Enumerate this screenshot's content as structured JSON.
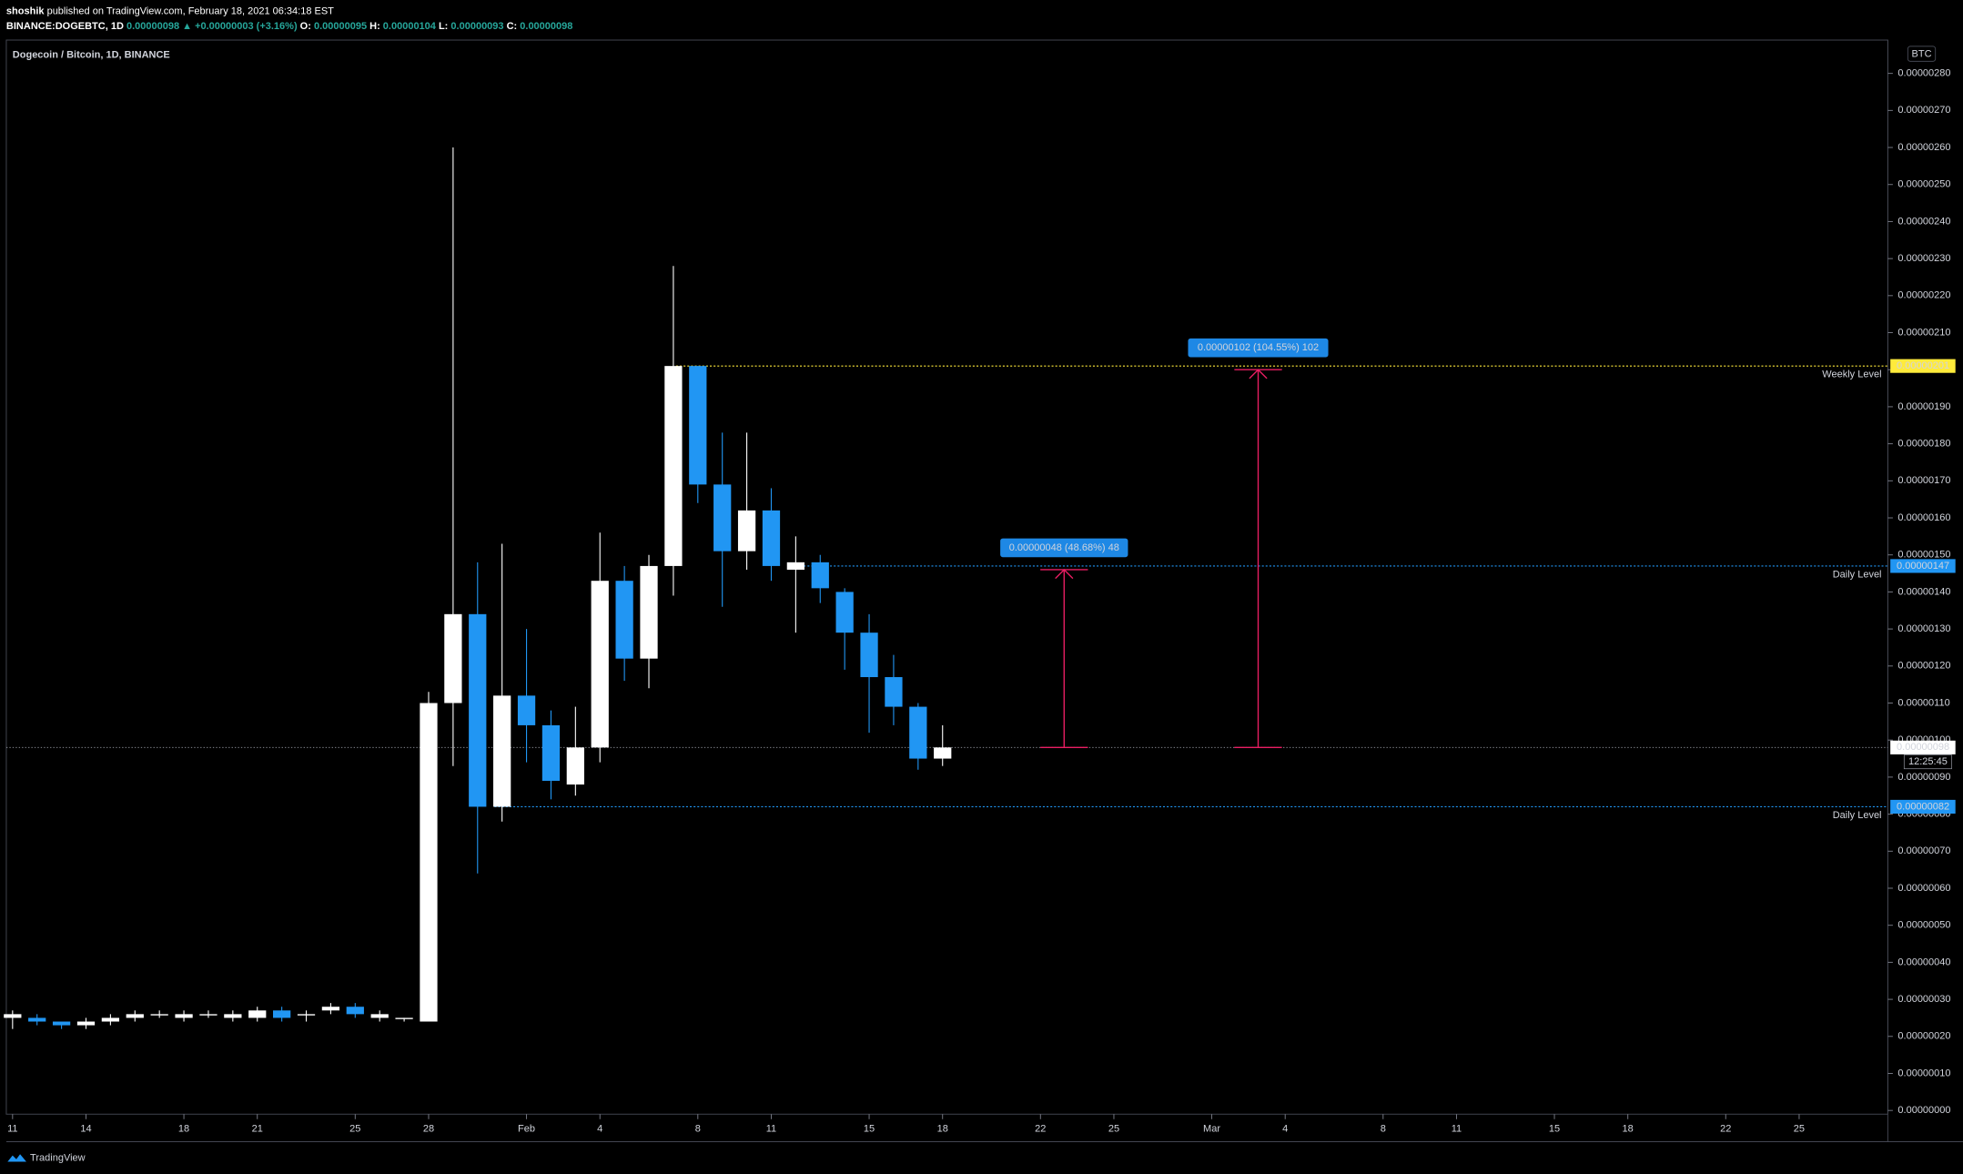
{
  "header": {
    "author": "shoshik",
    "published": " published on TradingView.com, February 18, 2021 06:34:18 EST",
    "line2": [
      "BINANCE:DOGEBTC, 1D",
      "0.00000098",
      "▲",
      "+0.00000003 (+3.16%)",
      "O:",
      "0.00000095",
      "H:",
      "0.00000104",
      "L:",
      "0.00000093",
      "C:",
      "0.00000098"
    ]
  },
  "footer": "TradingView",
  "chart_data": {
    "type": "candlestick",
    "title": "Dogecoin / Bitcoin, 1D, BINANCE",
    "currency": "BTC",
    "up_color": "#ffffff",
    "down_color": "#2196f3",
    "categories": [
      "11",
      null,
      null,
      "14",
      null,
      null,
      null,
      "18",
      null,
      null,
      "21",
      null,
      null,
      null,
      "25",
      null,
      null,
      "28",
      null,
      null,
      null,
      "Feb",
      null,
      null,
      "4",
      null,
      null,
      null,
      "8",
      null,
      null,
      "11",
      null,
      null,
      null,
      "15",
      null,
      null,
      "18",
      null,
      null,
      null,
      "22",
      null,
      null,
      "25",
      null,
      null,
      null,
      "Mar",
      null,
      null,
      "4",
      null,
      null,
      null,
      "8",
      null,
      null,
      "11",
      null,
      null,
      null,
      "15",
      null,
      null,
      "18",
      null,
      null,
      null,
      "22",
      null,
      null,
      "25",
      null,
      null
    ],
    "open": [
      2.5e-07,
      2.5e-07,
      2.4e-07,
      2.3e-07,
      2.4e-07,
      2.5e-07,
      2.6e-07,
      2.5e-07,
      2.6e-07,
      2.5e-07,
      2.5e-07,
      2.7e-07,
      2.6e-07,
      2.7e-07,
      2.8e-07,
      2.5e-07,
      2.5e-07,
      2.4e-07,
      1.1e-06,
      1.34e-06,
      8.2e-07,
      1.12e-06,
      1.04e-06,
      8.8e-07,
      9.8e-07,
      1.43e-06,
      1.22e-06,
      1.47e-06,
      2.01e-06,
      1.69e-06,
      1.51e-06,
      1.62e-06,
      1.46e-06,
      1.48e-06,
      1.4e-06,
      1.29e-06,
      1.17e-06,
      1.09e-06,
      9.5e-07,
      null,
      null,
      null,
      null,
      null,
      null,
      null,
      null,
      null,
      null,
      null,
      null,
      null,
      null,
      null,
      null,
      null,
      null,
      null,
      null,
      null,
      null,
      null,
      null,
      null,
      null,
      null,
      null,
      null,
      null,
      null,
      null,
      null,
      null,
      null,
      null,
      null
    ],
    "high": [
      2.7e-07,
      2.6e-07,
      2.4e-07,
      2.5e-07,
      2.6e-07,
      2.7e-07,
      2.7e-07,
      2.7e-07,
      2.7e-07,
      2.7e-07,
      2.8e-07,
      2.8e-07,
      2.7e-07,
      2.9e-07,
      2.9e-07,
      2.7e-07,
      2.5e-07,
      1.13e-06,
      2.6e-06,
      1.48e-06,
      1.53e-06,
      1.3e-06,
      1.08e-06,
      1.09e-06,
      1.56e-06,
      1.47e-06,
      1.5e-06,
      2.28e-06,
      2.01e-06,
      1.83e-06,
      1.83e-06,
      1.68e-06,
      1.55e-06,
      1.5e-06,
      1.41e-06,
      1.34e-06,
      1.23e-06,
      1.1e-06,
      1.04e-06,
      null,
      null,
      null,
      null,
      null,
      null,
      null,
      null,
      null,
      null,
      null,
      null,
      null,
      null,
      null,
      null,
      null,
      null,
      null,
      null,
      null,
      null,
      null,
      null,
      null,
      null,
      null,
      null,
      null,
      null,
      null,
      null,
      null,
      null,
      null,
      null,
      null
    ],
    "low": [
      2.2e-07,
      2.3e-07,
      2.2e-07,
      2.2e-07,
      2.3e-07,
      2.4e-07,
      2.5e-07,
      2.4e-07,
      2.5e-07,
      2.4e-07,
      2.4e-07,
      2.4e-07,
      2.4e-07,
      2.6e-07,
      2.5e-07,
      2.4e-07,
      2.4e-07,
      2.4e-07,
      9.3e-07,
      6.4e-07,
      7.8e-07,
      9.4e-07,
      8.4e-07,
      8.5e-07,
      9.4e-07,
      1.16e-06,
      1.14e-06,
      1.39e-06,
      1.64e-06,
      1.36e-06,
      1.46e-06,
      1.43e-06,
      1.29e-06,
      1.37e-06,
      1.19e-06,
      1.02e-06,
      1.04e-06,
      9.2e-07,
      9.3e-07,
      null,
      null,
      null,
      null,
      null,
      null,
      null,
      null,
      null,
      null,
      null,
      null,
      null,
      null,
      null,
      null,
      null,
      null,
      null,
      null,
      null,
      null,
      null,
      null,
      null,
      null,
      null,
      null,
      null,
      null,
      null,
      null,
      null,
      null,
      null,
      null,
      null
    ],
    "close": [
      2.6e-07,
      2.4e-07,
      2.3e-07,
      2.4e-07,
      2.5e-07,
      2.6e-07,
      2.6e-07,
      2.6e-07,
      2.6e-07,
      2.6e-07,
      2.7e-07,
      2.5e-07,
      2.6e-07,
      2.8e-07,
      2.6e-07,
      2.6e-07,
      2.5e-07,
      1.1e-06,
      1.34e-06,
      8.2e-07,
      1.12e-06,
      1.04e-06,
      8.9e-07,
      9.8e-07,
      1.43e-06,
      1.22e-06,
      1.47e-06,
      2.01e-06,
      1.69e-06,
      1.51e-06,
      1.62e-06,
      1.47e-06,
      1.48e-06,
      1.41e-06,
      1.29e-06,
      1.17e-06,
      1.09e-06,
      9.5e-07,
      9.8e-07,
      null,
      null,
      null,
      null,
      null,
      null,
      null,
      null,
      null,
      null,
      null,
      null,
      null,
      null,
      null,
      null,
      null,
      null,
      null,
      null,
      null,
      null,
      null,
      null,
      null,
      null,
      null,
      null,
      null,
      null,
      null,
      null,
      null,
      null,
      null,
      null,
      null
    ],
    "ylim": [
      -1e-08,
      2.89e-06
    ],
    "yticks": [
      {
        "value": 0.0,
        "label": "0.00000000"
      },
      {
        "value": 1e-07,
        "label": "0.00000010"
      },
      {
        "value": 2e-07,
        "label": "0.00000020"
      },
      {
        "value": 3e-07,
        "label": "0.00000030"
      },
      {
        "value": 4e-07,
        "label": "0.00000040"
      },
      {
        "value": 5e-07,
        "label": "0.00000050"
      },
      {
        "value": 6e-07,
        "label": "0.00000060"
      },
      {
        "value": 7e-07,
        "label": "0.00000070"
      },
      {
        "value": 8e-07,
        "label": "0.00000080"
      },
      {
        "value": 9e-07,
        "label": "0.00000090"
      },
      {
        "value": 1e-06,
        "label": "0.00000100"
      },
      {
        "value": 1.1e-06,
        "label": "0.00000110"
      },
      {
        "value": 1.2e-06,
        "label": "0.00000120"
      },
      {
        "value": 1.3e-06,
        "label": "0.00000130"
      },
      {
        "value": 1.4e-06,
        "label": "0.00000140"
      },
      {
        "value": 1.5e-06,
        "label": "0.00000150"
      },
      {
        "value": 1.6e-06,
        "label": "0.00000160"
      },
      {
        "value": 1.7e-06,
        "label": "0.00000170"
      },
      {
        "value": 1.8e-06,
        "label": "0.00000180"
      },
      {
        "value": 1.9e-06,
        "label": "0.00000190"
      },
      {
        "value": 2e-06,
        "label": "0.00000200"
      },
      {
        "value": 2.1e-06,
        "label": "0.00000210"
      },
      {
        "value": 2.2e-06,
        "label": "0.00000220"
      },
      {
        "value": 2.3e-06,
        "label": "0.00000230"
      },
      {
        "value": 2.4e-06,
        "label": "0.00000240"
      },
      {
        "value": 2.5e-06,
        "label": "0.00000250"
      },
      {
        "value": 2.6e-06,
        "label": "0.00000260"
      },
      {
        "value": 2.7e-06,
        "label": "0.00000270"
      },
      {
        "value": 2.8e-06,
        "label": "0.00000280"
      }
    ],
    "levels": [
      {
        "name": "Weekly Level",
        "value": 2.01e-06,
        "label": "0.00000201",
        "color": "#ffeb3b"
      },
      {
        "name": "Daily Level",
        "value": 1.47e-06,
        "label": "0.00000147",
        "color": "#2196f3"
      },
      {
        "name": "Daily Level",
        "value": 8.2e-07,
        "label": "0.00000082",
        "color": "#2196f3"
      }
    ],
    "last_price": {
      "value": 9.8e-07,
      "label": "0.00000098",
      "countdown": "12:25:45"
    },
    "measures": [
      {
        "label": "0.00000048 (48.68%) 48",
        "from": 9.8e-07,
        "to": 1.46e-06,
        "color": "#e91e63"
      },
      {
        "label": "0.00000102 (104.55%) 102",
        "from": 9.8e-07,
        "to": 2e-06,
        "color": "#e91e63"
      }
    ]
  }
}
